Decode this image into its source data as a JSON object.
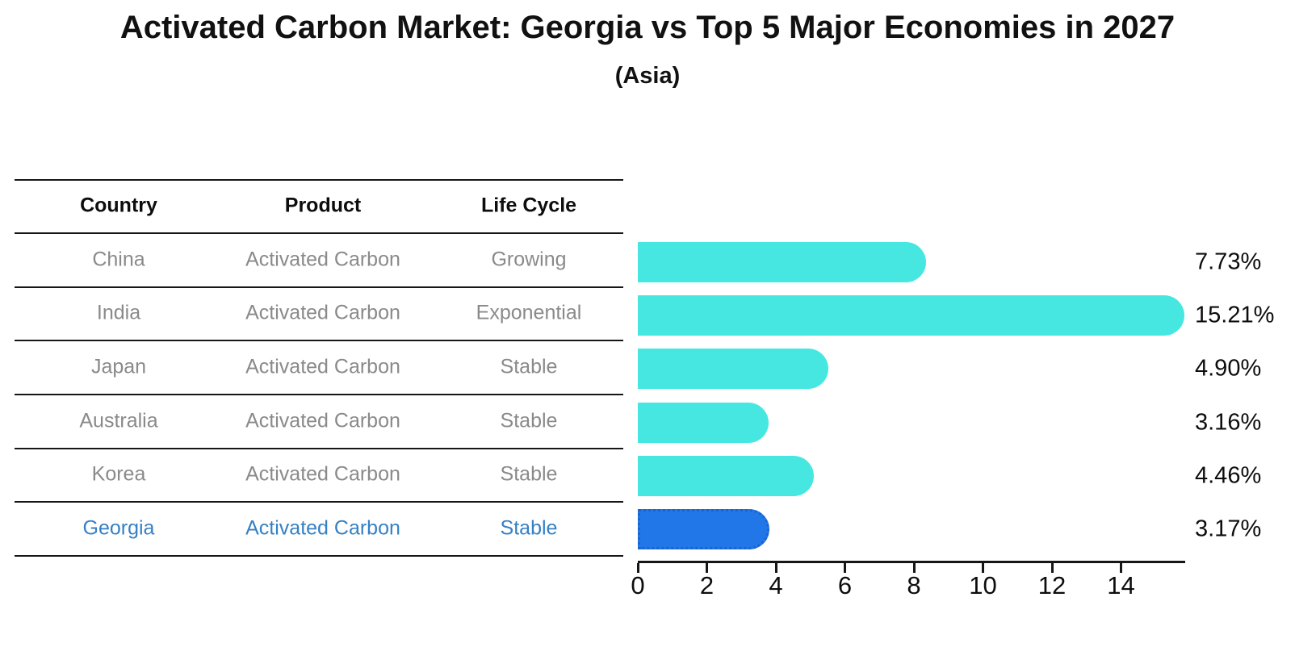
{
  "title": "Activated Carbon Market: Georgia vs Top 5 Major Economies in 2027",
  "subtitle": "(Asia)",
  "table": {
    "headers": [
      "Country",
      "Product",
      "Life Cycle"
    ],
    "rows": [
      {
        "country": "China",
        "product": "Activated Carbon",
        "life_cycle": "Growing",
        "highlight": false
      },
      {
        "country": "India",
        "product": "Activated Carbon",
        "life_cycle": "Exponential",
        "highlight": false
      },
      {
        "country": "Japan",
        "product": "Activated Carbon",
        "life_cycle": "Stable",
        "highlight": false
      },
      {
        "country": "Australia",
        "product": "Activated Carbon",
        "life_cycle": "Stable",
        "highlight": false
      },
      {
        "country": "Korea",
        "product": "Activated Carbon",
        "life_cycle": "Stable",
        "highlight": false
      },
      {
        "country": "Georgia",
        "product": "Activated Carbon",
        "life_cycle": "Stable",
        "highlight": true
      }
    ]
  },
  "chart_data": {
    "type": "bar",
    "orientation": "horizontal",
    "title": "Activated Carbon Market: Georgia vs Top 5 Major Economies in 2027",
    "subtitle": "(Asia)",
    "categories": [
      "China",
      "India",
      "Japan",
      "Australia",
      "Korea",
      "Georgia"
    ],
    "values": [
      7.73,
      15.21,
      4.9,
      3.16,
      4.46,
      3.17
    ],
    "value_labels": [
      "7.73%",
      "15.21%",
      "4.90%",
      "3.16%",
      "4.46%",
      "3.17%"
    ],
    "xticks": [
      0,
      2,
      4,
      6,
      8,
      10,
      12,
      14
    ],
    "xtick_labels": [
      "0",
      "2",
      "4",
      "6",
      "8",
      "10",
      "12",
      "14"
    ],
    "xlim": [
      0,
      15.85
    ],
    "grid": false,
    "legend": false,
    "bar_color": "#46e7e1",
    "highlight_bar_color": "#2277e8",
    "highlight_border_color": "#1b63d2",
    "highlight_text_color": "#3580c4",
    "highlight_index": 5
  }
}
